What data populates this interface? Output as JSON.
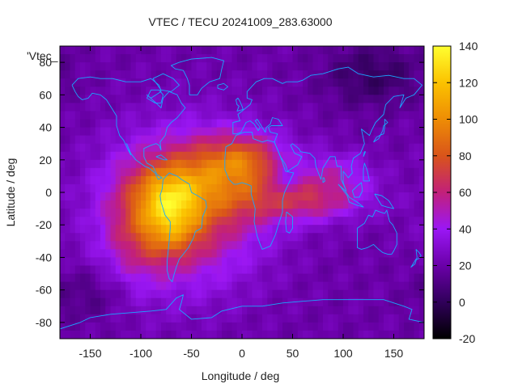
{
  "chart_data": {
    "type": "heatmap",
    "title": "VTEC / TECU 20241009_283.63000",
    "xlabel": "Longitude / deg",
    "ylabel": "Latitude / deg",
    "series_key": "'Vtec_",
    "xlim": [
      -180,
      180
    ],
    "ylim": [
      -90,
      90
    ],
    "x_ticks": [
      -150,
      -100,
      -50,
      0,
      50,
      100,
      150
    ],
    "y_ticks": [
      -80,
      -60,
      -40,
      -20,
      0,
      20,
      40,
      60,
      80
    ],
    "colorbar": {
      "range": [
        -20,
        140
      ],
      "ticks": [
        -20,
        0,
        20,
        40,
        60,
        80,
        100,
        120,
        140
      ],
      "palette": [
        "#000000",
        "#30005a",
        "#6a00a8",
        "#9b17f5",
        "#c2207a",
        "#d9541a",
        "#ee8d05",
        "#fbc200",
        "#ffff30"
      ]
    },
    "grid_step_deg": 5,
    "field_description_features": [
      {
        "name": "equatorial-anomaly-crest",
        "lon": -70,
        "lat": -2,
        "peak": 125
      },
      {
        "name": "southern-crest",
        "lon": -70,
        "lat": -20,
        "peak": 112
      },
      {
        "name": "north-atlantic-band",
        "lon": 0,
        "lat": 18,
        "peak": 80
      },
      {
        "name": "indian-ocean-tongue",
        "lon": 60,
        "lat": -5,
        "peak": 70
      },
      {
        "name": "siberia-minimum",
        "lon": 130,
        "lat": 75,
        "peak": 5
      }
    ],
    "coastline_color": "#1aa7ff"
  }
}
